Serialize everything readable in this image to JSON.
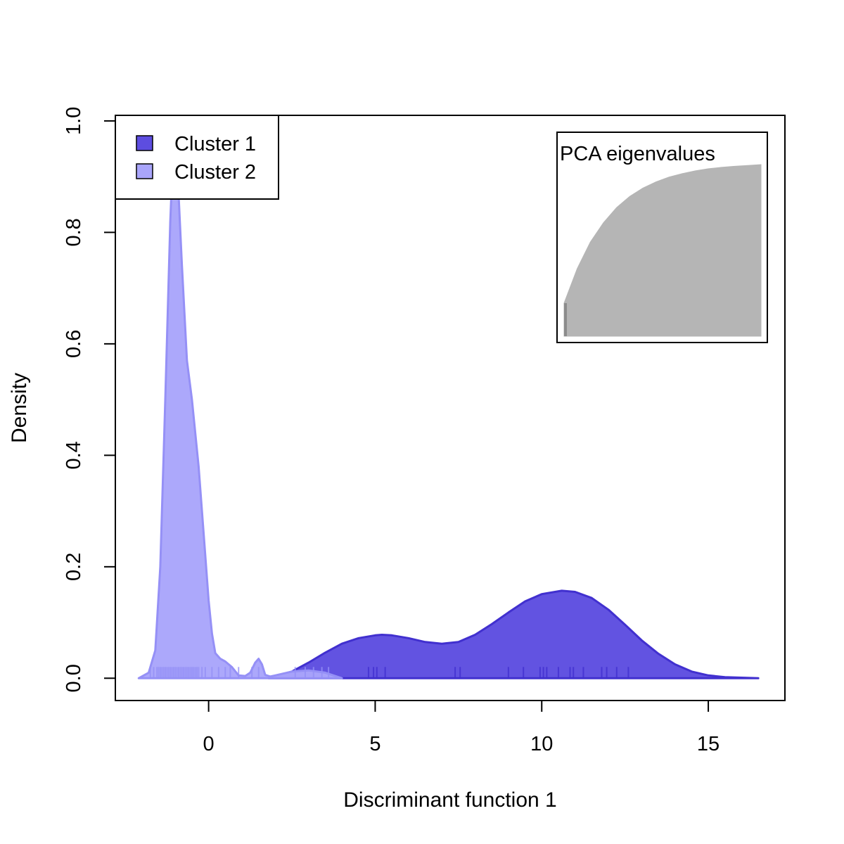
{
  "chart_data": {
    "type": "area",
    "xlabel": "Discriminant function 1",
    "ylabel": "Density",
    "xlim": [
      -2.8,
      17.3
    ],
    "ylim": [
      -0.04,
      1.01
    ],
    "x_ticks": [
      0,
      5,
      10,
      15
    ],
    "y_ticks": [
      0.0,
      0.2,
      0.4,
      0.6,
      0.8,
      1.0
    ],
    "y_tick_labels": [
      "0.0",
      "0.2",
      "0.4",
      "0.6",
      "0.8",
      "1.0"
    ],
    "grid": false,
    "legend_position": "top-left",
    "series": [
      {
        "name": "Cluster 1",
        "fill": "#5d4de0",
        "stroke": "#4130cf",
        "density": {
          "x": [
            1.8,
            2.5,
            3.0,
            3.5,
            4.0,
            4.5,
            5.0,
            5.2,
            5.5,
            6.0,
            6.5,
            7.0,
            7.5,
            8.0,
            8.5,
            9.0,
            9.5,
            10.0,
            10.6,
            11.0,
            11.5,
            12.0,
            12.5,
            13.0,
            13.5,
            14.0,
            14.5,
            15.0,
            15.5,
            16.0,
            16.5
          ],
          "y": [
            0.0,
            0.012,
            0.028,
            0.046,
            0.062,
            0.072,
            0.077,
            0.078,
            0.077,
            0.072,
            0.065,
            0.062,
            0.065,
            0.078,
            0.097,
            0.118,
            0.138,
            0.151,
            0.157,
            0.155,
            0.144,
            0.123,
            0.096,
            0.068,
            0.044,
            0.025,
            0.012,
            0.005,
            0.002,
            0.001,
            0.0
          ]
        },
        "rug": [
          4.8,
          4.95,
          5.05,
          5.3,
          7.4,
          7.55,
          9.0,
          9.45,
          9.95,
          10.05,
          10.15,
          10.5,
          10.85,
          10.95,
          11.25,
          11.8,
          11.95,
          12.25,
          12.6
        ]
      },
      {
        "name": "Cluster 2",
        "fill": "#a9a5fb",
        "stroke": "#9590f6",
        "density": {
          "x": [
            -2.1,
            -1.8,
            -1.6,
            -1.45,
            -1.3,
            -1.15,
            -1.05,
            -0.95,
            -0.8,
            -0.65,
            -0.5,
            -0.3,
            -0.1,
            0.0,
            0.1,
            0.2,
            0.35,
            0.5,
            0.7,
            0.9,
            1.1,
            1.25,
            1.4,
            1.5,
            1.6,
            1.7,
            1.85,
            2.0,
            2.5,
            3.0,
            3.5,
            4.0
          ],
          "y": [
            0.0,
            0.01,
            0.05,
            0.2,
            0.5,
            0.82,
            0.97,
            0.93,
            0.74,
            0.57,
            0.5,
            0.38,
            0.22,
            0.14,
            0.08,
            0.045,
            0.035,
            0.03,
            0.02,
            0.005,
            0.004,
            0.01,
            0.028,
            0.035,
            0.025,
            0.006,
            0.003,
            0.005,
            0.012,
            0.014,
            0.01,
            0.0
          ]
        },
        "rug": [
          -1.75,
          -1.65,
          -1.55,
          -1.5,
          -1.45,
          -1.4,
          -1.35,
          -1.3,
          -1.25,
          -1.2,
          -1.15,
          -1.1,
          -1.05,
          -1.0,
          -0.95,
          -0.9,
          -0.85,
          -0.8,
          -0.75,
          -0.7,
          -0.65,
          -0.6,
          -0.55,
          -0.5,
          -0.45,
          -0.4,
          -0.35,
          -0.3,
          -0.2,
          -0.1,
          0.1,
          0.3,
          0.5,
          0.65,
          0.9,
          1.3,
          1.5,
          2.6,
          2.9,
          3.15,
          3.4,
          3.6
        ]
      }
    ],
    "inset": {
      "title": "PCA eigenvalues",
      "fill": "#b5b5b5",
      "first_bar_fill": "#8c8c8c",
      "cumulative_fraction": [
        0.0,
        0.25,
        0.44,
        0.58,
        0.69,
        0.77,
        0.83,
        0.875,
        0.91,
        0.935,
        0.955,
        0.97,
        0.98,
        0.988,
        0.994,
        1.0
      ]
    }
  }
}
